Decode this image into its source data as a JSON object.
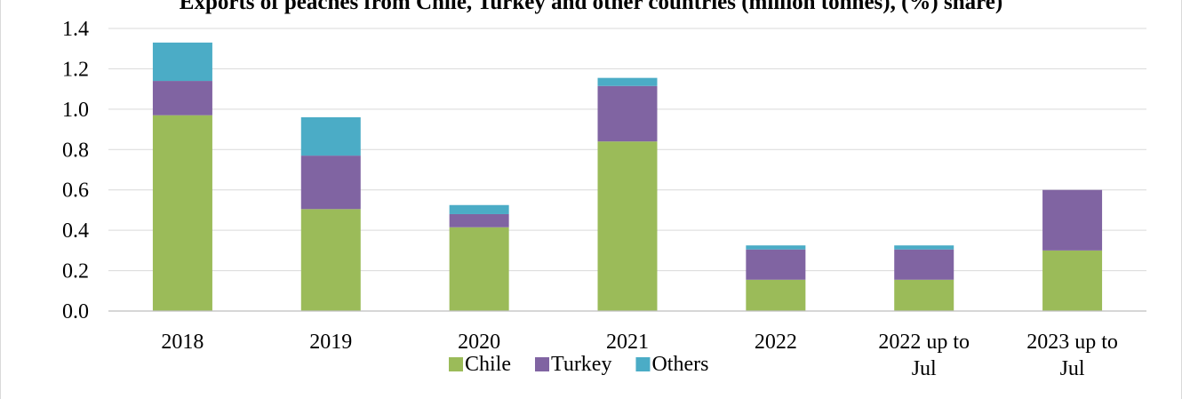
{
  "chart_data": {
    "type": "bar",
    "stacked": true,
    "title": "Exports of peaches from Chile, Turkey and other countries (million tonnes), (%) share)",
    "categories": [
      "2018",
      "2019",
      "2020",
      "2021",
      "2022",
      [
        "2022 up to",
        "Jul"
      ],
      [
        "2023 up to",
        "Jul"
      ]
    ],
    "series": [
      {
        "name": "Chile",
        "color": "#9bbb59",
        "values": [
          0.97,
          0.505,
          0.415,
          0.84,
          0.155,
          0.155,
          0.3
        ]
      },
      {
        "name": "Turkey",
        "color": "#8064a2",
        "values": [
          0.17,
          0.265,
          0.065,
          0.275,
          0.15,
          0.15,
          0.3
        ]
      },
      {
        "name": "Others",
        "color": "#4bacc6",
        "values": [
          0.19,
          0.19,
          0.045,
          0.04,
          0.02,
          0.02,
          0.0
        ]
      }
    ],
    "ylim": [
      0,
      1.4
    ],
    "yticks": [
      "0.0",
      "0.2",
      "0.4",
      "0.6",
      "0.8",
      "1.0",
      "1.2",
      "1.4"
    ],
    "grid": true,
    "legend_position": "bottom"
  }
}
